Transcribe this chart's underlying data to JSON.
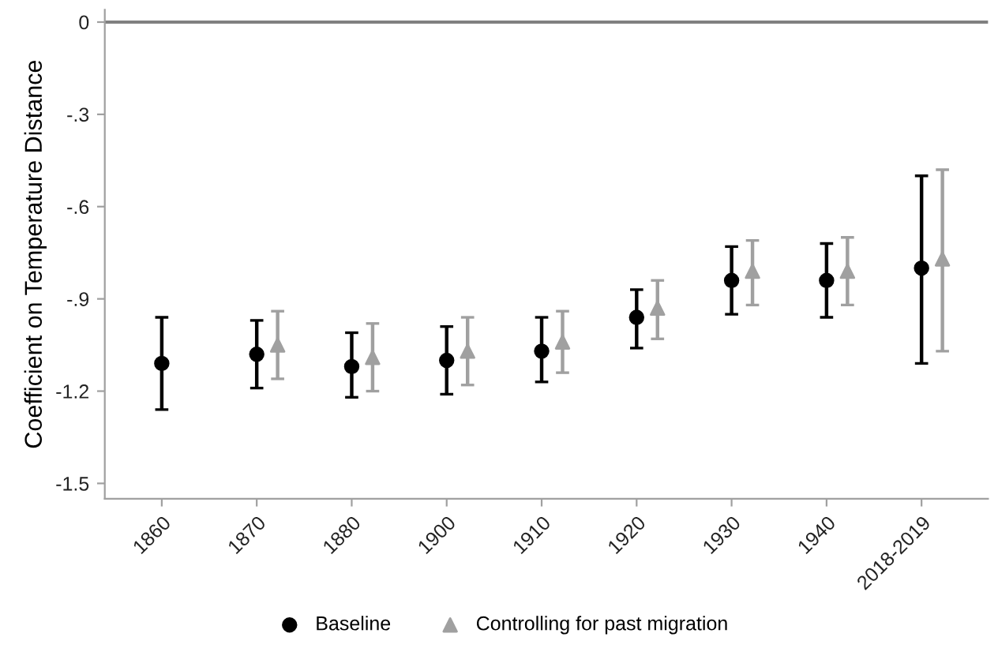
{
  "chart_data": {
    "type": "scatter",
    "ylabel": "Coefficient on Temperature Distance",
    "categories": [
      "1860",
      "1870",
      "1880",
      "1900",
      "1910",
      "1920",
      "1930",
      "1940",
      "2018-2019"
    ],
    "series": [
      {
        "name": "Baseline",
        "color": "#000000",
        "marker": "circle",
        "values": [
          -1.11,
          -1.08,
          -1.12,
          -1.1,
          -1.07,
          -0.96,
          -0.84,
          -0.84,
          -0.8
        ],
        "errors": [
          [
            -1.26,
            -0.96
          ],
          [
            -1.19,
            -0.97
          ],
          [
            -1.22,
            -1.01
          ],
          [
            -1.21,
            -0.99
          ],
          [
            -1.17,
            -0.96
          ],
          [
            -1.06,
            -0.87
          ],
          [
            -0.95,
            -0.73
          ],
          [
            -0.96,
            -0.72
          ],
          [
            -1.11,
            -0.5
          ]
        ]
      },
      {
        "name": "Controlling for past migration",
        "color": "#a0a0a0",
        "marker": "triangle",
        "values": [
          null,
          -1.05,
          -1.09,
          -1.07,
          -1.04,
          -0.93,
          -0.81,
          -0.81,
          -0.77
        ],
        "errors": [
          null,
          [
            -1.16,
            -0.94
          ],
          [
            -1.2,
            -0.98
          ],
          [
            -1.18,
            -0.96
          ],
          [
            -1.14,
            -0.94
          ],
          [
            -1.03,
            -0.84
          ],
          [
            -0.92,
            -0.71
          ],
          [
            -0.92,
            -0.7
          ],
          [
            -1.07,
            -0.48
          ]
        ]
      }
    ],
    "ylim": [
      -1.55,
      0.04
    ],
    "yticks": [
      {
        "value": 0,
        "label": "0"
      },
      {
        "value": -0.3,
        "label": "-.3"
      },
      {
        "value": -0.6,
        "label": "-.6"
      },
      {
        "value": -0.9,
        "label": "-.9"
      },
      {
        "value": -1.2,
        "label": "-1.2"
      },
      {
        "value": -1.5,
        "label": "-1.5"
      }
    ],
    "ref_lines": [
      {
        "axis": "y",
        "value": 0,
        "color": "#808080"
      }
    ],
    "grid": false,
    "legend": "bottom"
  }
}
